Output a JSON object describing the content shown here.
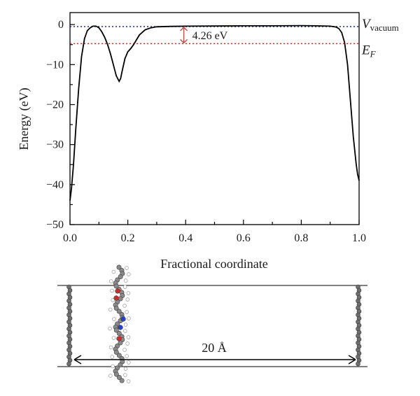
{
  "chart_data": {
    "type": "line",
    "xlabel": "Fractional coordinate",
    "ylabel": "Energy (eV)",
    "xlim": [
      0.0,
      1.0
    ],
    "ylim": [
      -50,
      3
    ],
    "x_ticks": [
      "0.0",
      "0.2",
      "0.4",
      "0.6",
      "0.8",
      "1.0"
    ],
    "y_ticks": [
      "0",
      "−10",
      "−20",
      "−30",
      "−40",
      "−50"
    ],
    "grid": false,
    "series": [
      {
        "color": "#000000",
        "x": [
          0.0,
          0.005,
          0.012,
          0.02,
          0.03,
          0.04,
          0.05,
          0.06,
          0.07,
          0.08,
          0.09,
          0.1,
          0.11,
          0.12,
          0.13,
          0.14,
          0.15,
          0.16,
          0.17,
          0.175,
          0.18,
          0.19,
          0.2,
          0.21,
          0.22,
          0.23,
          0.24,
          0.26,
          0.28,
          0.3,
          0.35,
          0.4,
          0.5,
          0.6,
          0.7,
          0.8,
          0.85,
          0.9,
          0.92,
          0.93,
          0.94,
          0.95,
          0.96,
          0.97,
          0.98,
          0.99,
          0.995,
          1.0
        ],
        "y": [
          -44,
          -41,
          -35,
          -26,
          -16,
          -8,
          -3.5,
          -1.5,
          -0.8,
          -0.4,
          -0.4,
          -0.8,
          -1.8,
          -3.2,
          -5.0,
          -7.3,
          -10.0,
          -12.8,
          -14.2,
          -13.5,
          -11.8,
          -8.5,
          -6.8,
          -6.0,
          -5.0,
          -3.8,
          -2.6,
          -1.3,
          -0.8,
          -0.55,
          -0.45,
          -0.4,
          -0.35,
          -0.3,
          -0.3,
          -0.25,
          -0.3,
          -0.4,
          -0.6,
          -1.0,
          -2.0,
          -4.5,
          -10,
          -19,
          -28,
          -35,
          -37.5,
          -39
        ]
      }
    ],
    "reference_lines": [
      {
        "label": "V",
        "label_sub": "vacuum",
        "y": -0.5,
        "color": "#1f2d8a",
        "style": "dotted"
      },
      {
        "label": "E",
        "label_sub": "F",
        "y": -4.76,
        "color": "#d62a2a",
        "style": "dotted"
      }
    ],
    "annotation": {
      "text": "4.26 eV",
      "x": 0.43,
      "y_from": -0.5,
      "y_to": -4.76,
      "color": "#c0504d"
    },
    "structure": {
      "distance_label": "20 Å"
    }
  }
}
